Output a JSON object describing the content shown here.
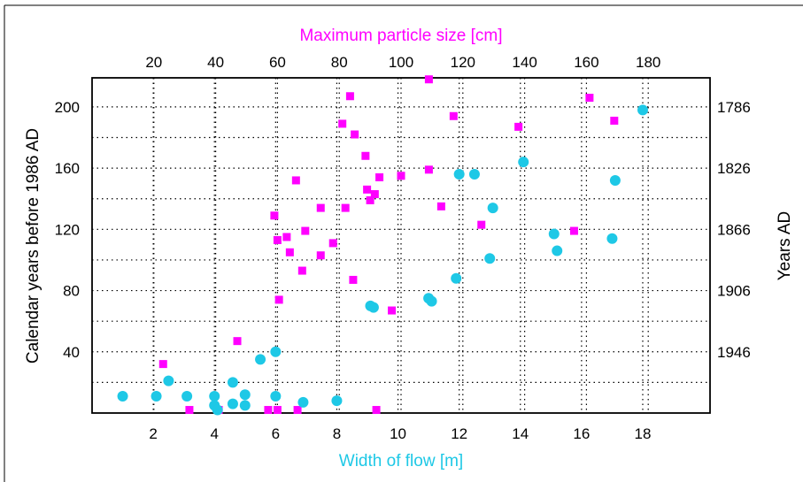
{
  "chart_data": {
    "type": "scatter",
    "title": "",
    "colors": {
      "magenta": "#ff00ff",
      "cyan": "#1ec8e6",
      "frame": "#000000"
    },
    "grid": true,
    "axes": {
      "x_bottom": {
        "label": "Width of flow [m]",
        "range": [
          0,
          20.2
        ],
        "ticks": [
          2,
          4,
          6,
          8,
          10,
          12,
          14,
          16,
          18
        ],
        "tick_labels": [
          "2",
          "4",
          "6",
          "8",
          "10",
          "12",
          "14",
          "16",
          "18"
        ]
      },
      "x_top": {
        "label": "Maximum particle size [cm]",
        "range": [
          0,
          200
        ],
        "ticks": [
          20,
          40,
          60,
          80,
          100,
          120,
          140,
          160,
          180
        ],
        "tick_labels": [
          "20",
          "40",
          "60",
          "80",
          "100",
          "120",
          "140",
          "160",
          "180"
        ]
      },
      "y_left": {
        "label": "Calendar years before 1986 AD",
        "range": [
          0,
          219
        ],
        "ticks": [
          40,
          80,
          120,
          160,
          200
        ],
        "tick_labels": [
          "40",
          "80",
          "120",
          "160",
          "200"
        ]
      },
      "y_right": {
        "label": "Years AD",
        "tick_labels": [
          "1786",
          "1826",
          "1866",
          "1906",
          "1946"
        ],
        "tick_values_left_axis": [
          200,
          160,
          120,
          80,
          40
        ]
      }
    },
    "series": [
      {
        "name": "Maximum particle size [cm]",
        "marker": "square",
        "color": "#ff00ff",
        "x_axis": "x_top",
        "points": [
          [
            23,
            32
          ],
          [
            31.5,
            2
          ],
          [
            41,
            2
          ],
          [
            47,
            47
          ],
          [
            57,
            2
          ],
          [
            60,
            2
          ],
          [
            59,
            129
          ],
          [
            60,
            113
          ],
          [
            60.5,
            74
          ],
          [
            63,
            115
          ],
          [
            64,
            105
          ],
          [
            66,
            152
          ],
          [
            66.5,
            2
          ],
          [
            68,
            93
          ],
          [
            69,
            119
          ],
          [
            74,
            134
          ],
          [
            74,
            103
          ],
          [
            78,
            111
          ],
          [
            81,
            189
          ],
          [
            82,
            134
          ],
          [
            83.5,
            207
          ],
          [
            84.5,
            87
          ],
          [
            85,
            182
          ],
          [
            88.5,
            168
          ],
          [
            89,
            146
          ],
          [
            90,
            139
          ],
          [
            91.5,
            143
          ],
          [
            92,
            2
          ],
          [
            93,
            154
          ],
          [
            97,
            67
          ],
          [
            100,
            155
          ],
          [
            109,
            218
          ],
          [
            109,
            159
          ],
          [
            113,
            135
          ],
          [
            117,
            194
          ],
          [
            126,
            123
          ],
          [
            138,
            187
          ],
          [
            156,
            119
          ],
          [
            161,
            206
          ],
          [
            169,
            191
          ]
        ]
      },
      {
        "name": "Width of flow [m]",
        "marker": "circle",
        "color": "#1ec8e6",
        "x_axis": "x_bottom",
        "points": [
          [
            1,
            11
          ],
          [
            2.1,
            11
          ],
          [
            2.5,
            21
          ],
          [
            3.1,
            11
          ],
          [
            4,
            11
          ],
          [
            4,
            5
          ],
          [
            4.1,
            2
          ],
          [
            4.6,
            20
          ],
          [
            4.6,
            6
          ],
          [
            5,
            12
          ],
          [
            5,
            5
          ],
          [
            5.5,
            35
          ],
          [
            6,
            11
          ],
          [
            6,
            40
          ],
          [
            6.9,
            7
          ],
          [
            8,
            8
          ],
          [
            9.1,
            70
          ],
          [
            9.2,
            69
          ],
          [
            11,
            75
          ],
          [
            11.1,
            73
          ],
          [
            11.9,
            88
          ],
          [
            12,
            156
          ],
          [
            12.5,
            156
          ],
          [
            13.1,
            134
          ],
          [
            13,
            101
          ],
          [
            14.1,
            164
          ],
          [
            15.1,
            117
          ],
          [
            15.2,
            106
          ],
          [
            17,
            114
          ],
          [
            17.1,
            152
          ],
          [
            18,
            198
          ]
        ]
      }
    ]
  }
}
